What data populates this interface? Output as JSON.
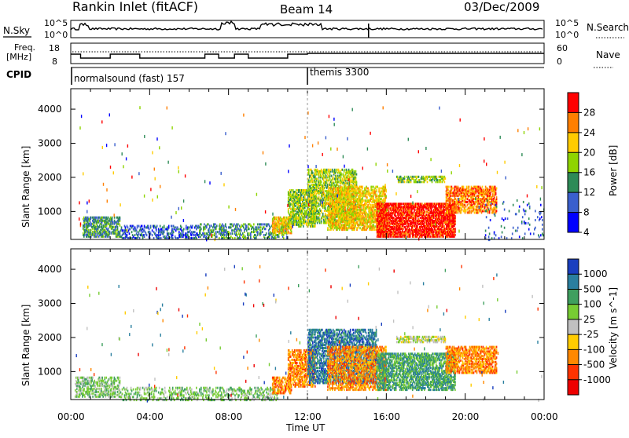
{
  "header": {
    "station": "Rankin Inlet (fitACF)",
    "beam": "Beam 14",
    "date": "03/Dec/2009"
  },
  "noise_panel": {
    "left_label": "N.Sky",
    "left_ticks": [
      "10^5",
      "10^0"
    ],
    "right_label": "N.Search",
    "right_ticks": [
      "10^5",
      "10^0"
    ]
  },
  "freq_panel": {
    "left_label_1": "Freq.",
    "left_label_2": "[MHz]",
    "left_ticks": [
      "18",
      "8"
    ],
    "right_label": "Nave",
    "right_ticks": [
      "60",
      "0"
    ]
  },
  "cpid_panel": {
    "label": "CPID",
    "modes": [
      {
        "name": "normalsound (fast) 157",
        "start_hour": 0
      },
      {
        "name": "themis 3300",
        "start_hour": 12
      }
    ]
  },
  "chart_data": [
    {
      "type": "heatmap",
      "title": "Power",
      "ylabel": "Slant Range [km]",
      "xlabel": "Time UT",
      "xlim_hours": [
        0,
        24
      ],
      "x_ticks": [
        "00:00",
        "04:00",
        "08:00",
        "12:00",
        "16:00",
        "20:00",
        "00:00"
      ],
      "ylim": [
        180,
        4600
      ],
      "y_ticks": [
        1000,
        2000,
        3000,
        4000
      ],
      "colorbar": {
        "label": "Power [dB]",
        "ticks": [
          "28",
          "24",
          "20",
          "16",
          "12",
          "8",
          "4"
        ],
        "colors": [
          "#ff0000",
          "#ff7f00",
          "#ffcc00",
          "#8fd400",
          "#2e8b57",
          "#3a5fcd",
          "#0000ff"
        ]
      },
      "regions": [
        {
          "t0": 0.6,
          "t1": 2.5,
          "r0": 300,
          "r1": 900,
          "level": 4,
          "density": 0.55
        },
        {
          "t0": 2.5,
          "t1": 6.5,
          "r0": 250,
          "r1": 650,
          "level": 5,
          "density": 0.35
        },
        {
          "t0": 6.5,
          "t1": 11.0,
          "r0": 250,
          "r1": 700,
          "level": 4,
          "density": 0.35
        },
        {
          "t0": 10.2,
          "t1": 11.2,
          "r0": 400,
          "r1": 900,
          "level": 2,
          "density": 0.6
        },
        {
          "t0": 11.0,
          "t1": 12.4,
          "r0": 600,
          "r1": 1700,
          "level": 3,
          "density": 0.6
        },
        {
          "t0": 12.0,
          "t1": 14.5,
          "r0": 700,
          "r1": 2300,
          "level": 3,
          "density": 0.5
        },
        {
          "t0": 13.0,
          "t1": 16.0,
          "r0": 500,
          "r1": 1800,
          "level": 2,
          "density": 0.55
        },
        {
          "t0": 15.5,
          "t1": 19.5,
          "r0": 300,
          "r1": 1300,
          "level": 0,
          "density": 0.7
        },
        {
          "t0": 16.5,
          "t1": 19.0,
          "r0": 1900,
          "r1": 2100,
          "level": 3,
          "density": 0.5
        },
        {
          "t0": 19.0,
          "t1": 21.6,
          "r0": 1000,
          "r1": 1800,
          "level": 1,
          "density": 0.55
        },
        {
          "t0": 21.0,
          "t1": 24.0,
          "r0": 200,
          "r1": 1400,
          "level": 5,
          "density": 0.05
        }
      ]
    },
    {
      "type": "heatmap",
      "title": "Velocity",
      "ylabel": "Slant Range [km]",
      "xlabel": "Time UT",
      "xlim_hours": [
        0,
        24
      ],
      "x_ticks": [
        "00:00",
        "04:00",
        "08:00",
        "12:00",
        "16:00",
        "20:00",
        "00:00"
      ],
      "ylim": [
        180,
        4600
      ],
      "y_ticks": [
        1000,
        2000,
        3000,
        4000
      ],
      "colorbar": {
        "label": "Velocity [m s^-1]",
        "ticks": [
          "1000",
          "500",
          "100",
          "25",
          "-25",
          "-100",
          "-500",
          "-1000"
        ],
        "colors": [
          "#1a3fbf",
          "#2a7f9f",
          "#3f9f5f",
          "#77cc33",
          "#c0c0c0",
          "#ffcc00",
          "#ff8800",
          "#ff3300",
          "#ee0000"
        ]
      },
      "regions": [
        {
          "t0": 0.2,
          "t1": 2.5,
          "r0": 300,
          "r1": 900,
          "level": 3,
          "density": 0.45
        },
        {
          "t0": 2.5,
          "t1": 10.5,
          "r0": 200,
          "r1": 600,
          "level": 3,
          "density": 0.3
        },
        {
          "t0": 10.2,
          "t1": 11.2,
          "r0": 400,
          "r1": 900,
          "level": 6,
          "density": 0.6
        },
        {
          "t0": 11.0,
          "t1": 12.4,
          "r0": 600,
          "r1": 1700,
          "level": 6,
          "density": 0.55
        },
        {
          "t0": 12.0,
          "t1": 15.5,
          "r0": 700,
          "r1": 2300,
          "level": 1,
          "density": 0.5
        },
        {
          "t0": 13.0,
          "t1": 16.0,
          "r0": 500,
          "r1": 1800,
          "level": 6,
          "density": 0.45
        },
        {
          "t0": 15.5,
          "t1": 19.5,
          "r0": 500,
          "r1": 1600,
          "level": 2,
          "density": 0.6
        },
        {
          "t0": 16.5,
          "t1": 19.0,
          "r0": 1900,
          "r1": 2100,
          "level": 4,
          "density": 0.55
        },
        {
          "t0": 19.0,
          "t1": 21.6,
          "r0": 1000,
          "r1": 1800,
          "level": 6,
          "density": 0.55
        }
      ]
    }
  ]
}
